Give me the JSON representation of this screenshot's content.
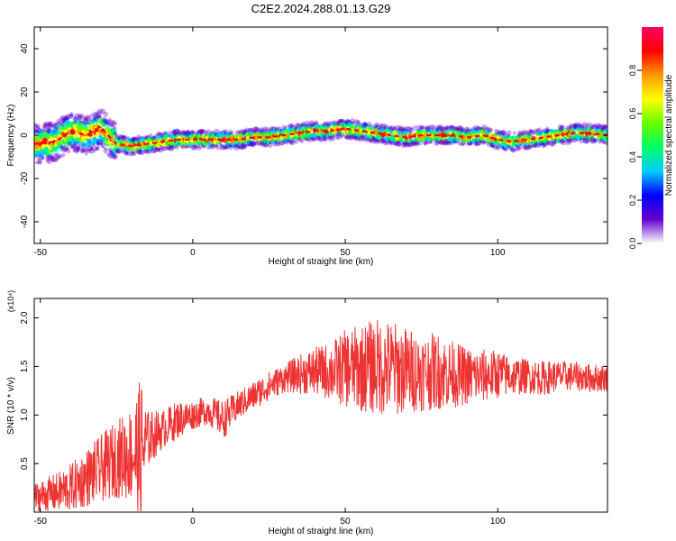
{
  "title": "C2E2.2024.288.01.13.G29",
  "chart_data": [
    {
      "type": "heatmap",
      "xlabel": "Height of straight line (km)",
      "ylabel": "Frequency (Hz)",
      "xlim": [
        -52,
        136
      ],
      "ylim": [
        -50,
        50
      ],
      "xticks": [
        -50,
        0,
        50,
        100
      ],
      "yticks": [
        -40,
        -20,
        0,
        20,
        40
      ],
      "grid": false,
      "ridge": {
        "x": [
          -52,
          -45,
          -40,
          -35,
          -30,
          -25,
          -20,
          -15,
          -10,
          -5,
          0,
          5,
          10,
          15,
          20,
          25,
          30,
          35,
          40,
          45,
          50,
          55,
          60,
          65,
          70,
          75,
          80,
          85,
          90,
          95,
          100,
          105,
          110,
          115,
          120,
          125,
          130,
          136
        ],
        "frequency": [
          -4,
          -3,
          2,
          0,
          3,
          -4,
          -5,
          -4,
          -3,
          -2,
          -2,
          -2,
          -2,
          -2,
          -1,
          -1,
          0,
          1,
          2,
          2,
          3,
          2,
          1,
          0,
          -1,
          0,
          0,
          0,
          -1,
          0,
          -2,
          -3,
          -2,
          -1,
          0,
          1,
          1,
          0
        ]
      },
      "colorbar": {
        "label": "Normalized spectral amplitude",
        "range": [
          0,
          1
        ],
        "ticks": [
          "0.0",
          "0.2",
          "0.4",
          "0.6",
          "0.8"
        ],
        "colormap": [
          "#ffffff",
          "#6600cc",
          "#0000ff",
          "#00ccff",
          "#00ff66",
          "#66ff00",
          "#ffff00",
          "#ff9900",
          "#ff0000",
          "#ff0066"
        ]
      }
    },
    {
      "type": "line",
      "xlabel": "Height of straight line (km)",
      "ylabel": "SNR (10 * v/v)",
      "yscale_label": "(x10⁴)",
      "xlim": [
        -52,
        136
      ],
      "ylim": [
        0,
        2.2
      ],
      "xticks": [
        -50,
        0,
        50,
        100
      ],
      "yticks": [
        "0.5",
        "1.0",
        "1.5",
        "2.0"
      ],
      "grid": false,
      "line_color": "#ee3333",
      "envelope": {
        "x": [
          -52,
          -45,
          -40,
          -35,
          -30,
          -25,
          -20,
          -17,
          -15,
          -10,
          -5,
          0,
          5,
          10,
          15,
          20,
          25,
          30,
          35,
          40,
          45,
          50,
          55,
          60,
          65,
          70,
          75,
          80,
          85,
          90,
          95,
          100,
          105,
          110,
          115,
          120,
          125,
          130,
          136
        ],
        "center": [
          0.15,
          0.2,
          0.25,
          0.35,
          0.45,
          0.55,
          0.6,
          0.6,
          0.75,
          0.85,
          0.95,
          1.0,
          1.05,
          0.95,
          1.1,
          1.2,
          1.3,
          1.38,
          1.42,
          1.45,
          1.45,
          1.48,
          1.48,
          1.5,
          1.48,
          1.46,
          1.44,
          1.45,
          1.42,
          1.4,
          1.4,
          1.42,
          1.4,
          1.4,
          1.38,
          1.4,
          1.4,
          1.38,
          1.38
        ],
        "spread": [
          0.15,
          0.2,
          0.25,
          0.3,
          0.35,
          0.4,
          0.5,
          0.8,
          0.3,
          0.2,
          0.2,
          0.15,
          0.15,
          0.2,
          0.15,
          0.15,
          0.15,
          0.15,
          0.2,
          0.25,
          0.3,
          0.4,
          0.45,
          0.5,
          0.5,
          0.45,
          0.4,
          0.4,
          0.35,
          0.3,
          0.28,
          0.25,
          0.2,
          0.18,
          0.18,
          0.16,
          0.15,
          0.15,
          0.14
        ]
      }
    }
  ]
}
